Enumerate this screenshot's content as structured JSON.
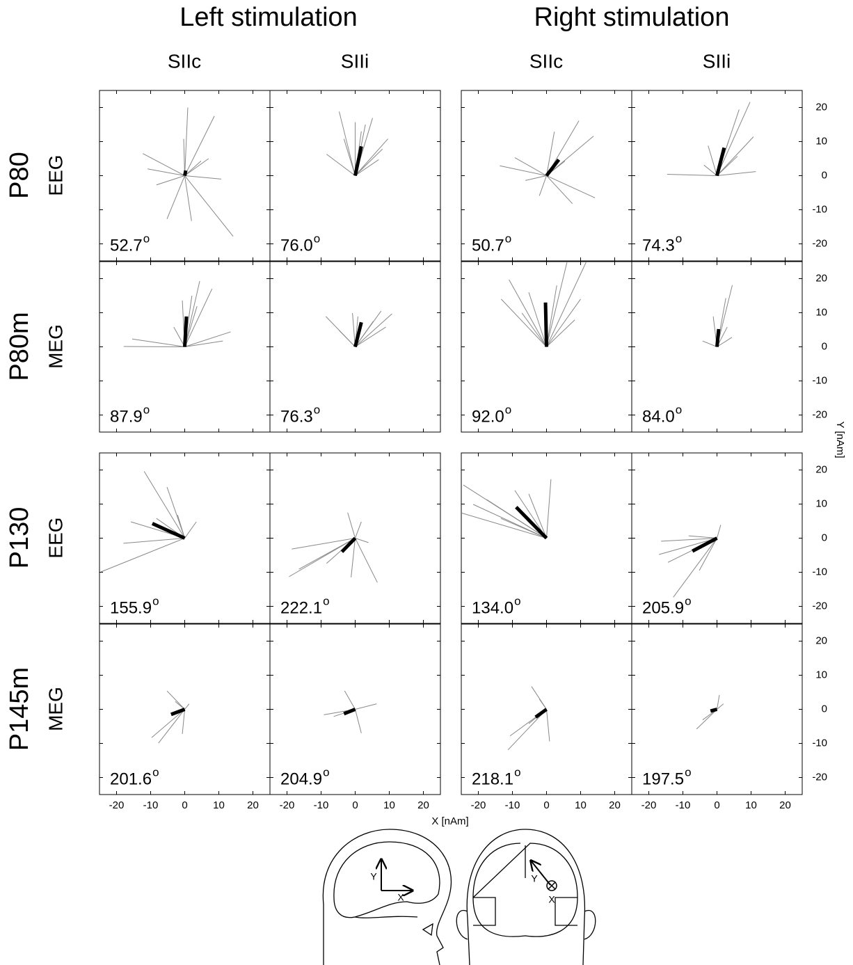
{
  "figure": {
    "column_groups": [
      "Left stimulation",
      "Right stimulation"
    ],
    "columns": [
      "SIIc",
      "SIIi",
      "SIIc",
      "SIIi"
    ],
    "rows": [
      {
        "component": "P80",
        "modality": "EEG"
      },
      {
        "component": "P80m",
        "modality": "MEG"
      },
      {
        "component": "P130",
        "modality": "EEG"
      },
      {
        "component": "P145m",
        "modality": "MEG"
      }
    ],
    "x_label": "X [nAm]",
    "y_label": "Y [nAm]",
    "degree_mark": "o",
    "axes": {
      "xlim": [
        -25,
        25
      ],
      "ylim": [
        -25,
        25
      ],
      "xticks": [
        -20,
        -10,
        0,
        10,
        20
      ],
      "yticks": [
        -20,
        -10,
        0,
        10,
        20
      ]
    },
    "vector_color": "#888888",
    "mean_color": "#000000",
    "head_labels": [
      "Y",
      "X",
      "Y",
      "X"
    ]
  },
  "chart_data": [
    {
      "type": "vector",
      "annotation": "52.7",
      "mean": {
        "x": 0.3,
        "y": 1.5
      },
      "vectors": {
        "x": [
          8.7,
          0.9,
          -0.3,
          -12.3,
          -10.9,
          10.7,
          14.2,
          -5.2,
          2,
          7,
          -8.3,
          4.8
        ],
        "y": [
          17.5,
          20,
          10.8,
          6.5,
          2,
          -1,
          -17.8,
          -12.7,
          -13.3,
          5,
          -2.7,
          4.3
        ]
      }
    },
    {
      "type": "vector",
      "annotation": "76.0",
      "mean": {
        "x": 1.8,
        "y": 8.6
      },
      "vectors": {
        "x": [
          -4.7,
          3,
          0,
          9.6,
          -8.4,
          5.1,
          6.9,
          -3.3,
          8,
          1.8
        ],
        "y": [
          18.8,
          15,
          15.7,
          10.8,
          6.3,
          16.9,
          4.7,
          10.8,
          7.8,
          13
        ]
      }
    },
    {
      "type": "vector",
      "annotation": "50.7",
      "mean": {
        "x": 3.6,
        "y": 4.7
      },
      "vectors": {
        "x": [
          -13.7,
          9.5,
          13.8,
          14.2,
          7.6,
          2.3,
          -9.3,
          -2.1,
          5.4,
          -6.2
        ],
        "y": [
          2.9,
          16.1,
          11.6,
          -6.5,
          -8.2,
          12.9,
          5.3,
          -5.9,
          4.3,
          -1.4
        ]
      }
    },
    {
      "type": "vector",
      "annotation": "74.3",
      "mean": {
        "x": 2.1,
        "y": 8.2
      },
      "vectors": {
        "x": [
          9.7,
          6.5,
          11.4,
          -14.6,
          10.7,
          -2.6,
          6,
          3.4,
          -3.8
        ],
        "y": [
          21.6,
          19.4,
          1.2,
          0.4,
          11.4,
          8.8,
          5.7,
          10.2,
          3.1
        ]
      }
    },
    {
      "type": "vector",
      "annotation": "87.9",
      "mean": {
        "x": 0.5,
        "y": 8.9
      },
      "vectors": {
        "x": [
          -17.9,
          4.4,
          8,
          13.5,
          11.2,
          -0.7,
          -15.4,
          3.6,
          2.1,
          -3.2
        ],
        "y": [
          0.1,
          19.3,
          17,
          4.4,
          1.7,
          13.6,
          2.3,
          11.9,
          15,
          5.8
        ]
      }
    },
    {
      "type": "vector",
      "annotation": "76.3",
      "mean": {
        "x": 1.8,
        "y": 7.2
      },
      "vectors": {
        "x": [
          -8.6,
          10.8,
          7.6,
          -0.8,
          5.3,
          9,
          -4.7,
          0.8
        ],
        "y": [
          8.9,
          9.7,
          10.5,
          9.9,
          7.5,
          5.8,
          4.8,
          8.9
        ]
      }
    },
    {
      "type": "vector",
      "annotation": "92.0",
      "mean": {
        "x": -0.3,
        "y": 13
      },
      "vectors": {
        "x": [
          -11,
          11.6,
          6,
          8.3,
          -13.3,
          -5.2,
          3,
          10,
          -7.2
        ],
        "y": [
          19.7,
          24.8,
          24.8,
          7.9,
          14,
          16,
          18,
          14,
          9.9
        ]
      }
    },
    {
      "type": "vector",
      "annotation": "84.0",
      "mean": {
        "x": 0.5,
        "y": 5.2
      },
      "vectors": {
        "x": [
          4.5,
          2.6,
          4.4,
          -4.2,
          -1.1,
          3
        ],
        "y": [
          18.1,
          14.3,
          2.8,
          1.7,
          8.9,
          5.8
        ]
      }
    },
    {
      "type": "vector",
      "annotation": "155.9",
      "mean": {
        "x": -9.5,
        "y": 4.3
      },
      "vectors": {
        "x": [
          -11.9,
          -24.6,
          -18,
          -15.8,
          3.4,
          -5.2,
          -8.3,
          -2.1
        ],
        "y": [
          19.6,
          -9.9,
          -1.5,
          4.8,
          4.8,
          15,
          5.8,
          6.8
        ]
      }
    },
    {
      "type": "vector",
      "annotation": "222.1",
      "mean": {
        "x": -3.9,
        "y": -4
      },
      "vectors": {
        "x": [
          -19.4,
          -18.6,
          -16.5,
          6.5,
          -2.2,
          1.8,
          3.9,
          -8.4,
          -1.2
        ],
        "y": [
          -11.3,
          -3.2,
          -9.1,
          -13,
          7.5,
          4.8,
          -1.3,
          -7.4,
          -11.5
        ]
      }
    },
    {
      "type": "vector",
      "annotation": "134.0",
      "mean": {
        "x": -8.9,
        "y": 9.1
      },
      "vectors": {
        "x": [
          -24.4,
          -25,
          1.3,
          -21.5,
          -17.5,
          -9.3,
          -5.2,
          -13.4
        ],
        "y": [
          15.6,
          7.4,
          17.3,
          9.9,
          11.3,
          14,
          13,
          5.8
        ]
      }
    },
    {
      "type": "vector",
      "annotation": "205.9",
      "mean": {
        "x": -7.2,
        "y": -3.8
      },
      "vectors": {
        "x": [
          -12.8,
          -17,
          -16.4,
          1.1,
          -5.2,
          -8.3,
          -14.4
        ],
        "y": [
          -17.3,
          -4.8,
          -0.9,
          3.9,
          -9.5,
          0.7,
          -7.1
        ]
      }
    },
    {
      "type": "vector",
      "annotation": "201.6",
      "mean": {
        "x": -4,
        "y": -1.5
      },
      "vectors": {
        "x": [
          -5.2,
          -9.7,
          -7.7,
          1.3,
          -0.7,
          -2.8
        ],
        "y": [
          5.4,
          -8.3,
          -9.9,
          1.6,
          -7.2,
          2.3
        ]
      }
    },
    {
      "type": "vector",
      "annotation": "204.9",
      "mean": {
        "x": -3.3,
        "y": -1.3
      },
      "vectors": {
        "x": [
          6.3,
          -9.2,
          1.8,
          -3.1,
          -6.3
        ],
        "y": [
          1.6,
          -1.6,
          -7,
          5.4,
          -2.1
        ]
      }
    },
    {
      "type": "vector",
      "annotation": "218.1",
      "mean": {
        "x": -3.2,
        "y": -2.3
      },
      "vectors": {
        "x": [
          -11.3,
          -10.7,
          -4.4,
          0.9,
          -2.1,
          -5.2
        ],
        "y": [
          -11.9,
          -7.8,
          6.7,
          -9.4,
          3,
          -4.2
        ]
      }
    },
    {
      "type": "vector",
      "annotation": "197.5",
      "mean": {
        "x": -1.9,
        "y": -0.5
      },
      "vectors": {
        "x": [
          -6,
          0.7,
          1.9,
          -4.2
        ],
        "y": [
          -5.8,
          4.2,
          1.6,
          -3.1
        ]
      }
    }
  ]
}
